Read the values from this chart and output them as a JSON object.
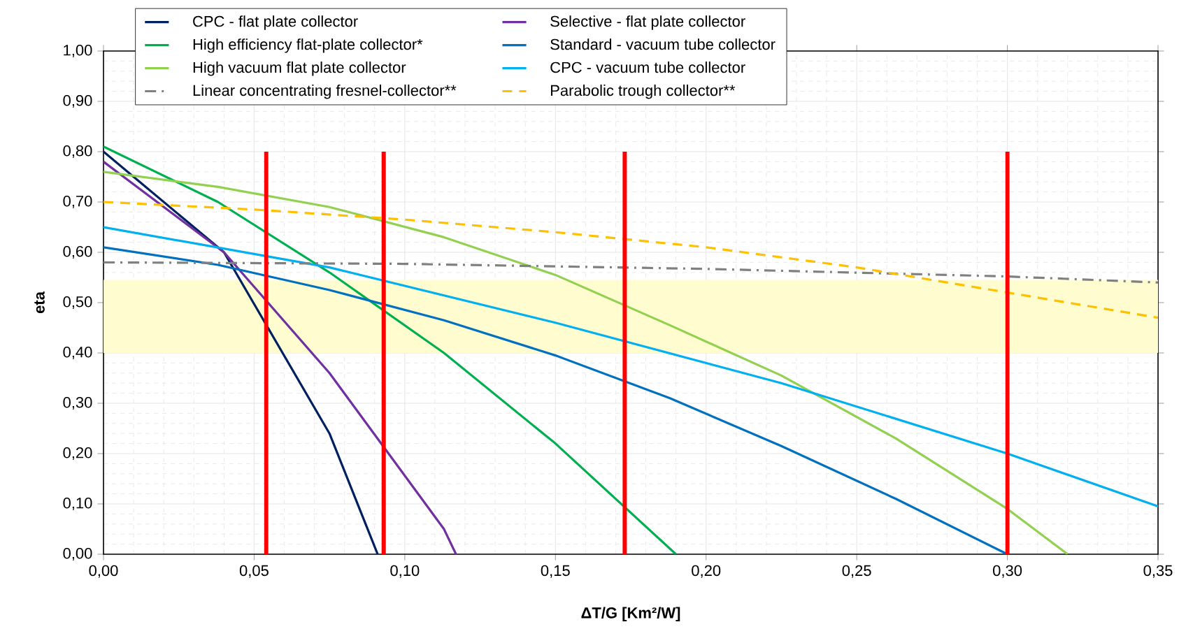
{
  "chart_data": {
    "type": "line",
    "xlabel": "ΔT/G  [Km²/W]",
    "ylabel": "eta",
    "xlim": [
      0,
      0.35
    ],
    "ylim": [
      0,
      1.0
    ],
    "xticks": [
      {
        "value": 0,
        "label": "0,00"
      },
      {
        "value": 0.05,
        "label": "0,05"
      },
      {
        "value": 0.1,
        "label": "0,10"
      },
      {
        "value": 0.15,
        "label": "0,15"
      },
      {
        "value": 0.2,
        "label": "0,20"
      },
      {
        "value": 0.25,
        "label": "0,25"
      },
      {
        "value": 0.3,
        "label": "0,30"
      },
      {
        "value": 0.35,
        "label": "0,35"
      }
    ],
    "yticks": [
      {
        "value": 0,
        "label": "0,00"
      },
      {
        "value": 0.1,
        "label": "0,10"
      },
      {
        "value": 0.2,
        "label": "0,20"
      },
      {
        "value": 0.3,
        "label": "0,30"
      },
      {
        "value": 0.4,
        "label": "0,40"
      },
      {
        "value": 0.5,
        "label": "0,50"
      },
      {
        "value": 0.6,
        "label": "0,60"
      },
      {
        "value": 0.7,
        "label": "0,70"
      },
      {
        "value": 0.8,
        "label": "0,80"
      },
      {
        "value": 0.9,
        "label": "0,90"
      },
      {
        "value": 1.0,
        "label": "1,00"
      }
    ],
    "grid": true,
    "legend": "top",
    "marker": "none",
    "series": [
      {
        "name": "CPC - flat plate collector",
        "color": "#002060",
        "x": [
          0,
          0.04,
          0.075,
          0.091
        ],
        "values": [
          0.8,
          0.6,
          0.24,
          0
        ]
      },
      {
        "name": "Selective - flat plate collector",
        "color": "#7030a0",
        "x": [
          0,
          0.04,
          0.075,
          0.113,
          0.117
        ],
        "values": [
          0.78,
          0.6,
          0.36,
          0.05,
          0
        ]
      },
      {
        "name": "High efficiency flat-plate collector*",
        "color": "#00b050",
        "x": [
          0,
          0.038,
          0.075,
          0.113,
          0.15,
          0.19
        ],
        "values": [
          0.81,
          0.7,
          0.56,
          0.4,
          0.22,
          0
        ]
      },
      {
        "name": "Standard - vacuum tube collector",
        "color": "#0070c0",
        "x": [
          0,
          0.038,
          0.075,
          0.113,
          0.15,
          0.188,
          0.225,
          0.263,
          0.3
        ],
        "values": [
          0.61,
          0.575,
          0.525,
          0.465,
          0.395,
          0.31,
          0.215,
          0.11,
          0
        ]
      },
      {
        "name": "High vacuum flat plate collector",
        "color": "#92d050",
        "x": [
          0,
          0.038,
          0.075,
          0.113,
          0.15,
          0.188,
          0.225,
          0.263,
          0.3,
          0.32
        ],
        "values": [
          0.76,
          0.73,
          0.69,
          0.63,
          0.555,
          0.455,
          0.355,
          0.23,
          0.09,
          0
        ]
      },
      {
        "name": "CPC - vacuum tube collector",
        "color": "#00b0f0",
        "x": [
          0,
          0.075,
          0.15,
          0.225,
          0.3,
          0.35
        ],
        "values": [
          0.65,
          0.57,
          0.46,
          0.34,
          0.2,
          0.095
        ]
      },
      {
        "name": "Linear concentrating fresnel-collector**",
        "color": "#808080",
        "line_style": "dashdot",
        "x": [
          0,
          0.1,
          0.2,
          0.3,
          0.35
        ],
        "values": [
          0.58,
          0.577,
          0.567,
          0.552,
          0.54
        ]
      },
      {
        "name": "Parabolic trough collector**",
        "color": "#ffc000",
        "line_style": "dashed",
        "x": [
          0,
          0.05,
          0.1,
          0.15,
          0.2,
          0.25,
          0.3,
          0.35
        ],
        "values": [
          0.7,
          0.685,
          0.665,
          0.64,
          0.61,
          0.57,
          0.52,
          0.47
        ]
      }
    ],
    "bands": [
      {
        "axis": "y",
        "from": 0.4,
        "to": 0.545,
        "color": "#fffcd0"
      }
    ],
    "ref_lines": [
      {
        "axis": "x",
        "value": 0.054,
        "color": "#ff0000"
      },
      {
        "axis": "x",
        "value": 0.093,
        "color": "#ff0000"
      },
      {
        "axis": "x",
        "value": 0.173,
        "color": "#ff0000"
      },
      {
        "axis": "x",
        "value": 0.3,
        "color": "#ff0000"
      }
    ]
  }
}
